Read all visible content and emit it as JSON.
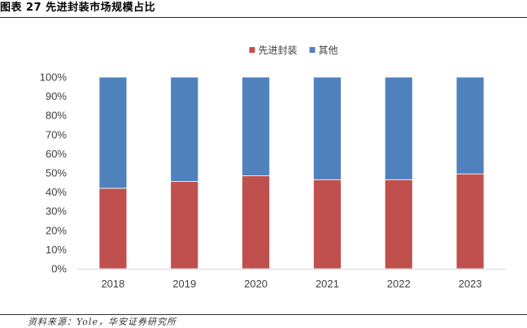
{
  "figure": {
    "title": "图表 27 先进封装市场规模占比",
    "source": "资料来源：Yole，华安证券研究所"
  },
  "chart_data": {
    "type": "bar",
    "stacked": true,
    "title": "",
    "xlabel": "",
    "ylabel": "",
    "categories": [
      "2018",
      "2019",
      "2020",
      "2021",
      "2022",
      "2023"
    ],
    "series": [
      {
        "name": "先进封装",
        "color": "#c0504d",
        "values": [
          42,
          45.5,
          48.5,
          46.5,
          46.5,
          49.5
        ]
      },
      {
        "name": "其他",
        "color": "#4f81bd",
        "values": [
          58,
          54.5,
          51.5,
          53.5,
          53.5,
          50.5
        ]
      }
    ],
    "ylim": [
      0,
      100
    ],
    "yticks": [
      "0%",
      "10%",
      "20%",
      "30%",
      "40%",
      "50%",
      "60%",
      "70%",
      "80%",
      "90%",
      "100%"
    ],
    "legend_position": "top-center",
    "grid": false
  }
}
